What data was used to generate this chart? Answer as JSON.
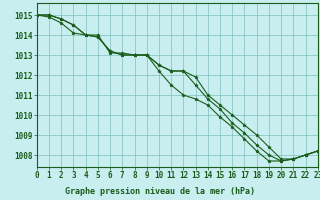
{
  "title": "Graphe pression niveau de la mer (hPa)",
  "background_color": "#c8eef0",
  "line_color": "#1a5c1a",
  "grid_color": "#7fbfbf",
  "xlim": [
    0,
    23
  ],
  "ylim": [
    1007.4,
    1015.6
  ],
  "yticks": [
    1008,
    1009,
    1010,
    1011,
    1012,
    1013,
    1014,
    1015
  ],
  "xticks": [
    0,
    1,
    2,
    3,
    4,
    5,
    6,
    7,
    8,
    9,
    10,
    11,
    12,
    13,
    14,
    15,
    16,
    17,
    18,
    19,
    20,
    21,
    22,
    23
  ],
  "series": [
    [
      1015.0,
      1015.0,
      1014.8,
      1014.5,
      1014.0,
      1014.0,
      1013.1,
      1013.1,
      1013.0,
      1013.0,
      1012.5,
      1012.2,
      1012.2,
      1011.5,
      1010.8,
      1010.3,
      1009.6,
      1009.1,
      1008.5,
      1008.0,
      1007.7,
      1007.8,
      1008.0,
      1008.2
    ],
    [
      1015.0,
      1015.0,
      1014.8,
      1014.5,
      1014.0,
      1013.9,
      1013.2,
      1013.0,
      1013.0,
      1013.0,
      1012.2,
      1011.5,
      1011.0,
      1010.8,
      1010.5,
      1009.9,
      1009.4,
      1008.8,
      1008.2,
      1007.7,
      1007.7,
      1007.8,
      1008.0,
      1008.2
    ],
    [
      1015.0,
      1014.9,
      1014.6,
      1014.1,
      1014.0,
      1013.9,
      1013.2,
      1013.0,
      1013.0,
      1013.0,
      1012.5,
      1012.2,
      1012.2,
      1011.9,
      1011.0,
      1010.5,
      1010.0,
      1009.5,
      1009.0,
      1008.4,
      1007.8,
      1007.8,
      1008.0,
      1008.2
    ]
  ],
  "xlabel_fontsize": 5.5,
  "ylabel_fontsize": 5.5,
  "title_fontsize": 6.0
}
